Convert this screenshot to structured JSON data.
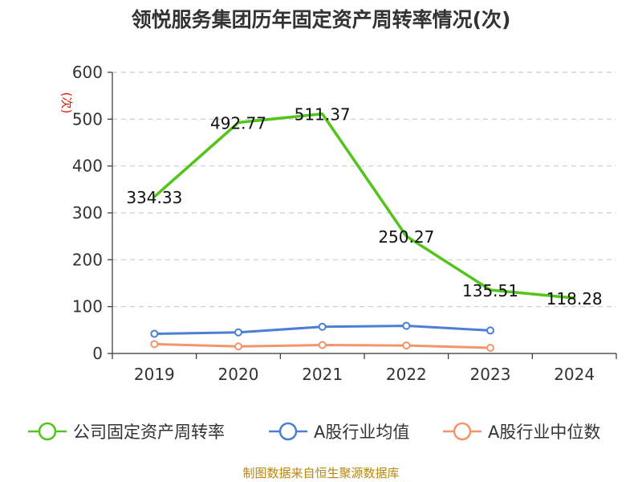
{
  "chart_data": {
    "type": "line",
    "title": "领悦服务集团历年固定资产周转率情况(次)",
    "ylabel": "(次)",
    "xlabel": "",
    "categories": [
      "2019",
      "2020",
      "2021",
      "2022",
      "2023",
      "2024"
    ],
    "ylim": [
      0,
      600
    ],
    "yticks": [
      0,
      100,
      200,
      300,
      400,
      500,
      600
    ],
    "grid": "horizontal dashed",
    "legend_position": "bottom",
    "series": [
      {
        "name": "公司固定资产周转率",
        "color": "#52c41a",
        "values": [
          334.33,
          492.77,
          511.37,
          250.27,
          135.51,
          118.28
        ],
        "labels": [
          "334.33",
          "492.77",
          "511.37",
          "250.27",
          "135.51",
          "118.28"
        ]
      },
      {
        "name": "A股行业均值",
        "color": "#4a7fd4",
        "values": [
          42,
          45,
          57,
          59,
          49,
          null
        ]
      },
      {
        "name": "A股行业中位数",
        "color": "#f2956b",
        "values": [
          20,
          15,
          18,
          17,
          12,
          null
        ]
      }
    ]
  },
  "source": "制图数据来自恒生聚源数据库"
}
